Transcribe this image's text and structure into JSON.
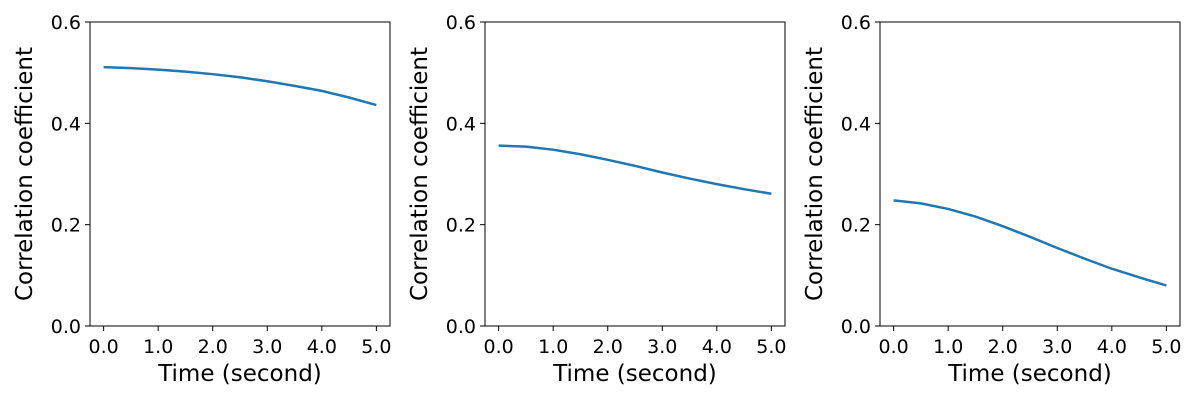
{
  "chart_data": [
    {
      "type": "line",
      "xlabel": "Time (second)",
      "ylabel": "Correlation coefficient",
      "x": [
        0,
        0.5,
        1,
        1.5,
        2,
        2.5,
        3,
        3.5,
        4,
        4.5,
        5
      ],
      "series": [
        {
          "color": "#1f77b4",
          "values": [
            0.511,
            0.509,
            0.506,
            0.502,
            0.497,
            0.491,
            0.483,
            0.474,
            0.464,
            0.451,
            0.436
          ]
        }
      ],
      "xlim": [
        -0.25,
        5.25
      ],
      "ylim": [
        0,
        0.6
      ],
      "xticks": [
        {
          "value": 0,
          "label": "0.0"
        },
        {
          "value": 1,
          "label": "1.0"
        },
        {
          "value": 2,
          "label": "2.0"
        },
        {
          "value": 3,
          "label": "3.0"
        },
        {
          "value": 4,
          "label": "4.0"
        },
        {
          "value": 5,
          "label": "5.0"
        }
      ],
      "yticks": [
        {
          "value": 0,
          "label": "0.0"
        },
        0.2,
        0.4,
        0.6
      ]
    },
    {
      "type": "line",
      "xlabel": "Time (second)",
      "ylabel": "Correlation coefficient",
      "x": [
        0,
        0.5,
        1,
        1.5,
        2,
        2.5,
        3,
        3.5,
        4,
        4.5,
        5
      ],
      "series": [
        {
          "color": "#1f77b4",
          "values": [
            0.356,
            0.354,
            0.348,
            0.339,
            0.328,
            0.316,
            0.303,
            0.291,
            0.28,
            0.27,
            0.261
          ]
        }
      ],
      "xlim": [
        -0.25,
        5.25
      ],
      "ylim": [
        0,
        0.6
      ],
      "xticks": [
        {
          "value": 0,
          "label": "0.0"
        },
        {
          "value": 1,
          "label": "1.0"
        },
        {
          "value": 2,
          "label": "2.0"
        },
        {
          "value": 3,
          "label": "3.0"
        },
        {
          "value": 4,
          "label": "4.0"
        },
        {
          "value": 5,
          "label": "5.0"
        }
      ],
      "yticks": [
        {
          "value": 0,
          "label": "0.0"
        },
        0.2,
        0.4,
        0.6
      ]
    },
    {
      "type": "line",
      "xlabel": "Time (second)",
      "ylabel": "Correlation coefficient",
      "x": [
        0,
        0.5,
        1,
        1.5,
        2,
        2.5,
        3,
        3.5,
        4,
        4.5,
        5
      ],
      "series": [
        {
          "color": "#1f77b4",
          "values": [
            0.248,
            0.242,
            0.231,
            0.216,
            0.197,
            0.176,
            0.154,
            0.133,
            0.113,
            0.096,
            0.08
          ]
        }
      ],
      "xlim": [
        -0.25,
        5.25
      ],
      "ylim": [
        0,
        0.6
      ],
      "xticks": [
        {
          "value": 0,
          "label": "0.0"
        },
        {
          "value": 1,
          "label": "1.0"
        },
        {
          "value": 2,
          "label": "2.0"
        },
        {
          "value": 3,
          "label": "3.0"
        },
        {
          "value": 4,
          "label": "4.0"
        },
        {
          "value": 5,
          "label": "5.0"
        }
      ],
      "yticks": [
        {
          "value": 0,
          "label": "0.0"
        },
        0.2,
        0.4,
        0.6
      ]
    }
  ]
}
